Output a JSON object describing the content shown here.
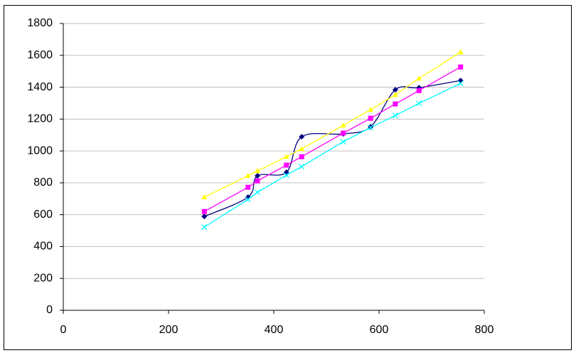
{
  "chart_data": {
    "type": "scatter",
    "xlim": [
      0,
      800
    ],
    "xticks": [
      0,
      200,
      400,
      600,
      800
    ],
    "ylim": [
      0,
      1800
    ],
    "yticks": [
      0,
      200,
      400,
      600,
      800,
      1000,
      1200,
      1400,
      1600,
      1800
    ],
    "grid": true,
    "series": [
      {
        "color": "#000080",
        "marker": "diamond",
        "smooth": true,
        "x": [
          268,
          351,
          369,
          424,
          453,
          532,
          584,
          631,
          676,
          755
        ],
        "values": [
          589,
          710,
          844,
          866,
          1089,
          1107,
          1152,
          1384,
          1397,
          1442
        ]
      },
      {
        "color": "#ff00ff",
        "marker": "square",
        "x": [
          268,
          351,
          369,
          424,
          453,
          532,
          584,
          631,
          676,
          755
        ],
        "values": [
          620,
          772,
          812,
          911,
          964,
          1112,
          1205,
          1295,
          1379,
          1527
        ]
      },
      {
        "color": "#ffff00",
        "marker": "triangle",
        "x": [
          268,
          351,
          369,
          424,
          453,
          532,
          584,
          631,
          676,
          755
        ],
        "values": [
          710,
          844,
          875,
          964,
          1013,
          1161,
          1259,
          1353,
          1455,
          1621
        ]
      },
      {
        "color": "#00ffff",
        "marker": "cross",
        "x": [
          268,
          351,
          369,
          424,
          453,
          532,
          584,
          631,
          676,
          755
        ],
        "values": [
          522,
          696,
          741,
          848,
          902,
          1058,
          1147,
          1223,
          1299,
          1424
        ]
      }
    ]
  }
}
